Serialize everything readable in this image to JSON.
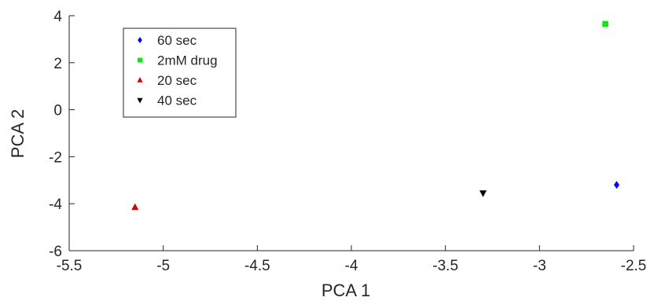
{
  "chart_data": {
    "type": "scatter",
    "xlabel": "PCA 1",
    "ylabel": "PCA 2",
    "xlim": [
      -5.5,
      -2.5
    ],
    "ylim": [
      -6,
      4
    ],
    "xticks": [
      -5.5,
      -5,
      -4.5,
      -4,
      -3.5,
      -3,
      -2.5
    ],
    "yticks": [
      -6,
      -4,
      -2,
      0,
      2,
      4
    ],
    "xtick_labels": [
      "-5.5",
      "-5",
      "-4.5",
      "-4",
      "-3.5",
      "-3",
      "-2.5"
    ],
    "ytick_labels": [
      "-6",
      "-4",
      "-2",
      "0",
      "2",
      "4"
    ],
    "grid": false,
    "legend_position": "top-left",
    "series": [
      {
        "name": "60 sec",
        "marker": "diamond",
        "color": "#0000ff",
        "x": [
          -2.59
        ],
        "y": [
          -3.2
        ]
      },
      {
        "name": "2mM drug",
        "marker": "square",
        "color": "#00ee00",
        "x": [
          -2.65
        ],
        "y": [
          3.65
        ]
      },
      {
        "name": "20 sec",
        "marker": "triangle-up",
        "color": "#dd0000",
        "x": [
          -5.15
        ],
        "y": [
          -4.15
        ]
      },
      {
        "name": "40 sec",
        "marker": "triangle-down",
        "color": "#000000",
        "x": [
          -3.3
        ],
        "y": [
          -3.55
        ]
      }
    ]
  }
}
